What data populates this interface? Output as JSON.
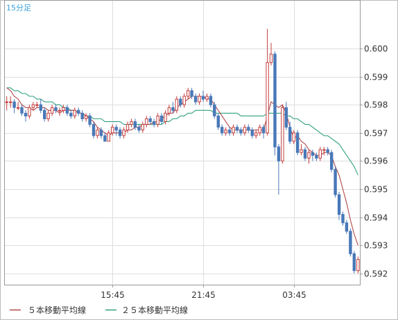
{
  "chart_data": {
    "type": "candlestick",
    "title": "15分足",
    "ylim": [
      0.5916,
      0.6017
    ],
    "y_ticks": [
      0.592,
      0.593,
      0.594,
      0.595,
      0.596,
      0.597,
      0.598,
      0.599,
      0.6
    ],
    "y_tick_labels": [
      "0.592",
      "0.593",
      "0.594",
      "0.595",
      "0.596",
      "0.597",
      "0.598",
      "0.599",
      "0.600"
    ],
    "x_ticks": [
      {
        "index": 28,
        "label": "15:45"
      },
      {
        "index": 52,
        "label": "21:45"
      },
      {
        "index": 76,
        "label": "03:45"
      }
    ],
    "grid": true,
    "legend_position": "bottom-left",
    "colors": {
      "up": "#c43c3c",
      "down": "#4878b8",
      "ma5": "#b04848",
      "ma25": "#30a080",
      "grid": "#dddddd",
      "title": "#3aa3d8"
    },
    "candles": [
      [
        0.5981,
        0.5981,
        0.5983,
        0.5978
      ],
      [
        0.5981,
        0.5981,
        0.5983,
        0.5979
      ],
      [
        0.5981,
        0.5979,
        0.5982,
        0.5977
      ],
      [
        0.5979,
        0.5979,
        0.5981,
        0.5978
      ],
      [
        0.5979,
        0.5977,
        0.598,
        0.5976
      ],
      [
        0.5977,
        0.5976,
        0.5978,
        0.5974
      ],
      [
        0.5976,
        0.5979,
        0.598,
        0.5975
      ],
      [
        0.5979,
        0.598,
        0.5981,
        0.5978
      ],
      [
        0.598,
        0.598,
        0.5981,
        0.5979
      ],
      [
        0.598,
        0.5978,
        0.5982,
        0.5977
      ],
      [
        0.5978,
        0.5975,
        0.5979,
        0.5974
      ],
      [
        0.5975,
        0.5977,
        0.5978,
        0.5974
      ],
      [
        0.5977,
        0.5979,
        0.598,
        0.5976
      ],
      [
        0.5979,
        0.5978,
        0.598,
        0.5977
      ],
      [
        0.5978,
        0.5978,
        0.5979,
        0.5976
      ],
      [
        0.5978,
        0.5979,
        0.598,
        0.5977
      ],
      [
        0.5979,
        0.5977,
        0.598,
        0.5976
      ],
      [
        0.5977,
        0.5976,
        0.5978,
        0.5975
      ],
      [
        0.5976,
        0.5978,
        0.5979,
        0.5975
      ],
      [
        0.5978,
        0.5977,
        0.5979,
        0.5976
      ],
      [
        0.5977,
        0.5975,
        0.5978,
        0.5974
      ],
      [
        0.5975,
        0.5976,
        0.5977,
        0.5974
      ],
      [
        0.5976,
        0.5973,
        0.5977,
        0.5972
      ],
      [
        0.5973,
        0.5969,
        0.5974,
        0.5968
      ],
      [
        0.5969,
        0.5971,
        0.5972,
        0.5968
      ],
      [
        0.5971,
        0.5969,
        0.5972,
        0.5968
      ],
      [
        0.5969,
        0.5967,
        0.597,
        0.5967
      ],
      [
        0.5967,
        0.597,
        0.5971,
        0.5967
      ],
      [
        0.597,
        0.5972,
        0.5973,
        0.5969
      ],
      [
        0.5972,
        0.5971,
        0.5973,
        0.5969
      ],
      [
        0.5971,
        0.5969,
        0.5972,
        0.5968
      ],
      [
        0.5969,
        0.5971,
        0.5972,
        0.5968
      ],
      [
        0.5971,
        0.5973,
        0.5974,
        0.597
      ],
      [
        0.5973,
        0.5974,
        0.5975,
        0.5972
      ],
      [
        0.5974,
        0.5972,
        0.5975,
        0.5971
      ],
      [
        0.5972,
        0.5971,
        0.5973,
        0.597
      ],
      [
        0.5971,
        0.5973,
        0.5974,
        0.597
      ],
      [
        0.5973,
        0.5975,
        0.5976,
        0.5972
      ],
      [
        0.5975,
        0.5974,
        0.5976,
        0.5973
      ],
      [
        0.5974,
        0.5973,
        0.5975,
        0.5972
      ],
      [
        0.5973,
        0.5976,
        0.5977,
        0.5972
      ],
      [
        0.5976,
        0.5974,
        0.5977,
        0.5973
      ],
      [
        0.5974,
        0.5977,
        0.5978,
        0.5973
      ],
      [
        0.5977,
        0.5979,
        0.598,
        0.5976
      ],
      [
        0.5979,
        0.5978,
        0.5981,
        0.5977
      ],
      [
        0.5978,
        0.5982,
        0.5983,
        0.5977
      ],
      [
        0.5982,
        0.598,
        0.5983,
        0.5979
      ],
      [
        0.598,
        0.5983,
        0.5984,
        0.5979
      ],
      [
        0.5983,
        0.5985,
        0.5986,
        0.5982
      ],
      [
        0.5985,
        0.5983,
        0.5986,
        0.5982
      ],
      [
        0.5983,
        0.5981,
        0.5984,
        0.598
      ],
      [
        0.5981,
        0.5983,
        0.5984,
        0.598
      ],
      [
        0.5983,
        0.5982,
        0.5985,
        0.5981
      ],
      [
        0.5982,
        0.5983,
        0.5984,
        0.5981
      ],
      [
        0.5983,
        0.598,
        0.5984,
        0.5979
      ],
      [
        0.598,
        0.5976,
        0.5981,
        0.5975
      ],
      [
        0.5976,
        0.5972,
        0.5977,
        0.5971
      ],
      [
        0.5972,
        0.597,
        0.5973,
        0.5969
      ],
      [
        0.597,
        0.5971,
        0.5972,
        0.5969
      ],
      [
        0.5971,
        0.597,
        0.5972,
        0.5969
      ],
      [
        0.597,
        0.5972,
        0.5973,
        0.5969
      ],
      [
        0.5972,
        0.5971,
        0.5973,
        0.597
      ],
      [
        0.5971,
        0.597,
        0.5972,
        0.5969
      ],
      [
        0.597,
        0.5972,
        0.5973,
        0.5969
      ],
      [
        0.5972,
        0.5971,
        0.5973,
        0.597
      ],
      [
        0.5971,
        0.5969,
        0.5972,
        0.5968
      ],
      [
        0.5969,
        0.597,
        0.5971,
        0.5968
      ],
      [
        0.597,
        0.5972,
        0.5973,
        0.5969
      ],
      [
        0.5972,
        0.597,
        0.5973,
        0.5968
      ],
      [
        0.597,
        0.5995,
        0.6007,
        0.5969
      ],
      [
        0.5995,
        0.5998,
        0.6002,
        0.5994
      ],
      [
        0.5998,
        0.5965,
        0.5999,
        0.5962
      ],
      [
        0.5965,
        0.596,
        0.5966,
        0.5948
      ],
      [
        0.596,
        0.5979,
        0.598,
        0.5959
      ],
      [
        0.5979,
        0.5972,
        0.5981,
        0.5971
      ],
      [
        0.5972,
        0.5967,
        0.5974,
        0.5966
      ],
      [
        0.5967,
        0.597,
        0.5971,
        0.5966
      ],
      [
        0.597,
        0.5963,
        0.5971,
        0.5962
      ],
      [
        0.5963,
        0.5964,
        0.5966,
        0.5962
      ],
      [
        0.5964,
        0.5961,
        0.5965,
        0.596
      ],
      [
        0.5961,
        0.5963,
        0.5964,
        0.5959
      ],
      [
        0.5963,
        0.5962,
        0.5964,
        0.596
      ],
      [
        0.5962,
        0.5961,
        0.5963,
        0.596
      ],
      [
        0.5961,
        0.5964,
        0.5965,
        0.596
      ],
      [
        0.5964,
        0.5964,
        0.5965,
        0.5962
      ],
      [
        0.5964,
        0.5963,
        0.5965,
        0.5962
      ],
      [
        0.5963,
        0.5957,
        0.5964,
        0.5956
      ],
      [
        0.5957,
        0.5948,
        0.5958,
        0.5947
      ],
      [
        0.5948,
        0.5941,
        0.5949,
        0.5939
      ],
      [
        0.5941,
        0.5938,
        0.5942,
        0.5937
      ],
      [
        0.5938,
        0.5935,
        0.5939,
        0.5934
      ],
      [
        0.5935,
        0.5927,
        0.5936,
        0.5926
      ],
      [
        0.5927,
        0.5921,
        0.5928,
        0.592
      ],
      [
        0.5921,
        0.5925,
        0.5926,
        0.592
      ]
    ],
    "ma5": [
      0.5986,
      0.5985,
      0.5983,
      0.5982,
      0.598,
      0.5979,
      0.5979,
      0.5978,
      0.5979,
      0.5979,
      0.5979,
      0.5978,
      0.5978,
      0.5978,
      0.5977,
      0.5978,
      0.5978,
      0.5978,
      0.5978,
      0.5977,
      0.5977,
      0.5976,
      0.5975,
      0.5974,
      0.5972,
      0.5971,
      0.597,
      0.5969,
      0.597,
      0.597,
      0.597,
      0.597,
      0.5971,
      0.5971,
      0.5972,
      0.5972,
      0.5973,
      0.5973,
      0.5973,
      0.5974,
      0.5974,
      0.5975,
      0.5976,
      0.5977,
      0.5977,
      0.5979,
      0.598,
      0.5981,
      0.5982,
      0.5983,
      0.5983,
      0.5983,
      0.5983,
      0.5982,
      0.5982,
      0.598,
      0.5978,
      0.5976,
      0.5974,
      0.5972,
      0.5971,
      0.5971,
      0.5971,
      0.5971,
      0.5971,
      0.5971,
      0.5971,
      0.5971,
      0.5971,
      0.5976,
      0.5981,
      0.598,
      0.5979,
      0.598,
      0.5977,
      0.5972,
      0.5968,
      0.5969,
      0.5967,
      0.5966,
      0.5964,
      0.5963,
      0.5962,
      0.5962,
      0.5963,
      0.5963,
      0.5962,
      0.5958,
      0.5955,
      0.595,
      0.5945,
      0.5939,
      0.5934,
      0.593
    ],
    "ma25": [
      0.5986,
      0.5986,
      0.5985,
      0.5985,
      0.5984,
      0.5984,
      0.5983,
      0.5983,
      0.5982,
      0.5982,
      0.5981,
      0.5981,
      0.5981,
      0.598,
      0.598,
      0.5979,
      0.5979,
      0.5978,
      0.5978,
      0.5977,
      0.5977,
      0.5976,
      0.5976,
      0.5975,
      0.5975,
      0.5975,
      0.5974,
      0.5974,
      0.5974,
      0.5974,
      0.5974,
      0.5973,
      0.5973,
      0.5973,
      0.5973,
      0.5973,
      0.5973,
      0.5973,
      0.5973,
      0.5973,
      0.5973,
      0.5973,
      0.5974,
      0.5974,
      0.5975,
      0.5975,
      0.5976,
      0.5976,
      0.5977,
      0.5977,
      0.5978,
      0.5978,
      0.5978,
      0.5978,
      0.5978,
      0.5977,
      0.5977,
      0.5977,
      0.5977,
      0.5977,
      0.5977,
      0.5977,
      0.5976,
      0.5976,
      0.5976,
      0.5976,
      0.5976,
      0.5976,
      0.5976,
      0.5977,
      0.5977,
      0.5977,
      0.5977,
      0.5977,
      0.5976,
      0.5976,
      0.5975,
      0.5975,
      0.5974,
      0.5973,
      0.5973,
      0.5972,
      0.5971,
      0.597,
      0.5969,
      0.5969,
      0.5968,
      0.5967,
      0.5966,
      0.5964,
      0.5962,
      0.596,
      0.5958,
      0.5955
    ]
  },
  "legend": {
    "ma5_label": "５本移動平均線",
    "ma25_label": "２５本移動平均線"
  }
}
